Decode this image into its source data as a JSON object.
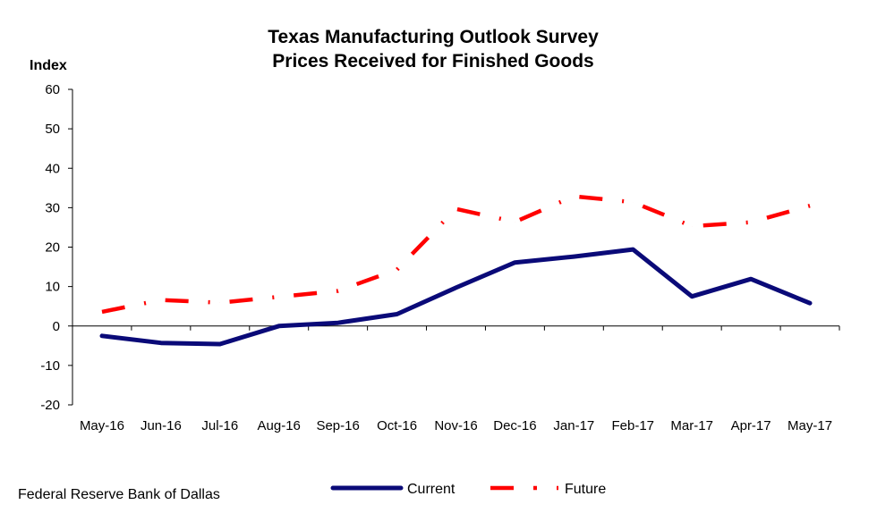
{
  "chart_data": {
    "type": "line",
    "title": [
      "Texas Manufacturing Outlook  Survey",
      "Prices Received for Finished Goods"
    ],
    "ylabel": "Index",
    "ylim": [
      -20,
      60
    ],
    "yticks": [
      -20,
      -10,
      0,
      10,
      20,
      30,
      40,
      50,
      60
    ],
    "grid": false,
    "legend_position": "bottom",
    "categories": [
      "May-16",
      "Jun-16",
      "Jul-16",
      "Aug-16",
      "Sep-16",
      "Oct-16",
      "Nov-16",
      "Dec-16",
      "Jan-17",
      "Feb-17",
      "Mar-17",
      "Apr-17",
      "May-17"
    ],
    "series": [
      {
        "name": "Current",
        "color": "#0a0a78",
        "style": "solid",
        "values": [
          -2.5,
          -4.3,
          -4.6,
          0.0,
          0.8,
          3.0,
          9.7,
          16.1,
          17.6,
          19.4,
          7.5,
          11.9,
          5.8
        ]
      },
      {
        "name": "Future",
        "color": "#ff0000",
        "style": "dash-dot",
        "values": [
          3.6,
          6.6,
          5.9,
          7.4,
          8.9,
          14.3,
          29.7,
          26.4,
          32.9,
          31.4,
          25.3,
          26.3,
          30.5
        ]
      }
    ]
  },
  "source": "Federal Reserve Bank of Dallas"
}
